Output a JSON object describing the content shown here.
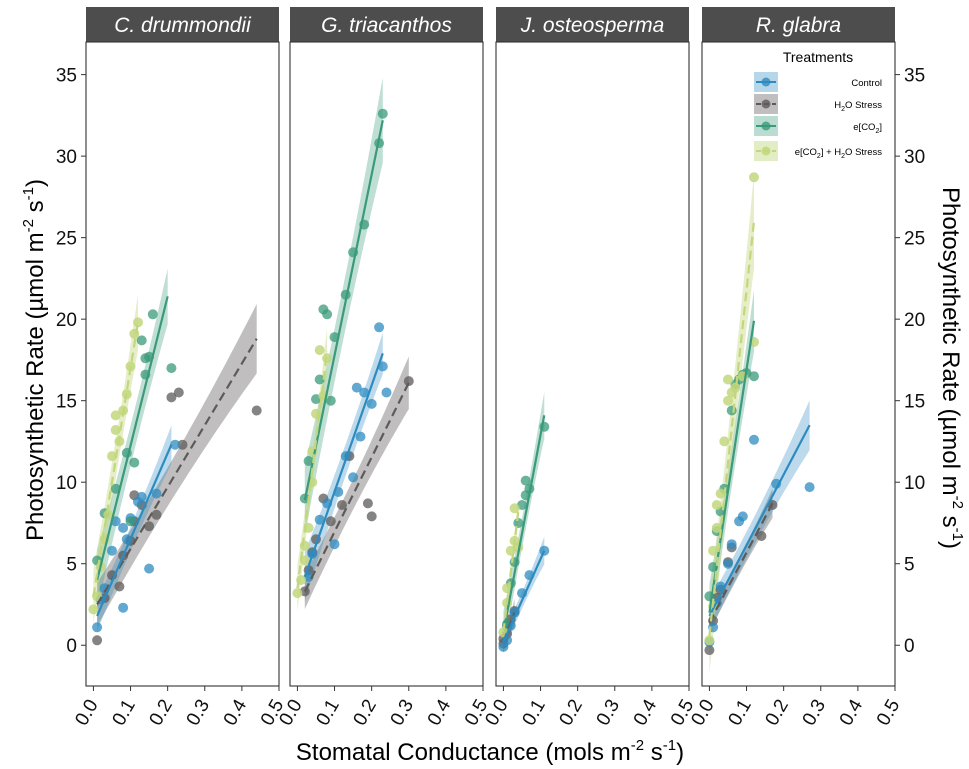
{
  "chart_data": {
    "type": "scatter",
    "xlabel": {
      "pre": "Stomatal Conductance (mols m",
      "sup1": "-2",
      "mid": " s",
      "sup2": "-1",
      "post": ")"
    },
    "ylabel": {
      "pre": "Photosynthetic Rate (µmol m",
      "sup1": "-2",
      "mid": " s",
      "sup2": "-1",
      "post": ")"
    },
    "xlim": [
      -0.02,
      0.5
    ],
    "ylim": [
      -2.5,
      37
    ],
    "x_ticks": [
      "0.0",
      "0.1",
      "0.2",
      "0.3",
      "0.4",
      "0.5"
    ],
    "y_ticks": [
      "0",
      "5",
      "10",
      "15",
      "20",
      "25",
      "30",
      "35"
    ],
    "x_tick_values": [
      0,
      0.1,
      0.2,
      0.3,
      0.4,
      0.5
    ],
    "y_tick_values": [
      0,
      5,
      10,
      15,
      20,
      25,
      30,
      35
    ],
    "grid": false,
    "legend": {
      "title": "Treatments",
      "placement": "top-right, inside last panel",
      "entries": [
        {
          "label": "Control",
          "dash": "solid"
        },
        {
          "label": "H",
          "sub": "2",
          "label2": "O Stress",
          "dash": "dashed"
        },
        {
          "label": "e[CO",
          "sub": "2",
          "label2": "]",
          "dash": "solid"
        },
        {
          "label": "e[CO",
          "sub": "2",
          "label2": "] + H",
          "sub2": "2",
          "label3": "O Stress",
          "dash": "dashed"
        }
      ]
    },
    "series_colors": {
      "control": "#2e8bc0",
      "h2o_stress": "#5e5a5a",
      "eco2": "#3a9a7a",
      "eco2_h2o": "#c2d77c",
      "h2o_band": "#8d8888"
    },
    "panels": [
      {
        "title": "C. drummondii",
        "series": [
          {
            "key": "control",
            "points": [
              [
                0.01,
                1.1
              ],
              [
                0.02,
                2.8
              ],
              [
                0.03,
                3.5
              ],
              [
                0.05,
                5.8
              ],
              [
                0.06,
                7.6
              ],
              [
                0.08,
                7.2
              ],
              [
                0.08,
                2.3
              ],
              [
                0.09,
                6.5
              ],
              [
                0.1,
                7.8
              ],
              [
                0.12,
                8.8
              ],
              [
                0.13,
                9.1
              ],
              [
                0.15,
                4.7
              ],
              [
                0.17,
                9.3
              ],
              [
                0.22,
                12.3
              ]
            ],
            "fit": [
              [
                0.01,
                1.8
              ],
              [
                0.21,
                12.3
              ]
            ]
          },
          {
            "key": "h2o_stress",
            "points": [
              [
                0.01,
                0.3
              ],
              [
                0.03,
                2.9
              ],
              [
                0.05,
                4.3
              ],
              [
                0.07,
                3.6
              ],
              [
                0.08,
                5.5
              ],
              [
                0.1,
                6.4
              ],
              [
                0.11,
                7.6
              ],
              [
                0.11,
                9.2
              ],
              [
                0.13,
                8.6
              ],
              [
                0.15,
                7.3
              ],
              [
                0.17,
                8.0
              ],
              [
                0.21,
                15.2
              ],
              [
                0.23,
                15.5
              ],
              [
                0.24,
                12.3
              ],
              [
                0.44,
                14.4
              ]
            ],
            "fit": [
              [
                0.01,
                2.5
              ],
              [
                0.44,
                18.8
              ]
            ]
          },
          {
            "key": "eco2",
            "points": [
              [
                0.01,
                5.2
              ],
              [
                0.03,
                8.1
              ],
              [
                0.06,
                9.6
              ],
              [
                0.09,
                11.8
              ],
              [
                0.1,
                7.6
              ],
              [
                0.11,
                11.2
              ],
              [
                0.13,
                18.7
              ],
              [
                0.14,
                16.6
              ],
              [
                0.14,
                17.6
              ],
              [
                0.15,
                17.7
              ],
              [
                0.16,
                20.3
              ],
              [
                0.21,
                17.0
              ]
            ],
            "fit": [
              [
                0.01,
                4.0
              ],
              [
                0.2,
                21.4
              ]
            ]
          },
          {
            "key": "eco2_h2o",
            "points": [
              [
                0.0,
                2.2
              ],
              [
                0.01,
                3.0
              ],
              [
                0.02,
                4.8
              ],
              [
                0.03,
                6.5
              ],
              [
                0.04,
                8.0
              ],
              [
                0.05,
                11.6
              ],
              [
                0.06,
                14.1
              ],
              [
                0.06,
                13.2
              ],
              [
                0.07,
                12.5
              ],
              [
                0.08,
                14.4
              ],
              [
                0.09,
                15.4
              ],
              [
                0.1,
                17.1
              ],
              [
                0.11,
                19.1
              ],
              [
                0.12,
                19.8
              ]
            ],
            "fit": [
              [
                0.0,
                3.0
              ],
              [
                0.12,
                19.8
              ]
            ]
          }
        ]
      },
      {
        "title": "G. triacanthos",
        "series": [
          {
            "key": "control",
            "points": [
              [
                0.03,
                4.2
              ],
              [
                0.04,
                5.6
              ],
              [
                0.06,
                7.7
              ],
              [
                0.08,
                8.7
              ],
              [
                0.1,
                6.2
              ],
              [
                0.11,
                9.4
              ],
              [
                0.13,
                11.6
              ],
              [
                0.15,
                10.3
              ],
              [
                0.16,
                15.8
              ],
              [
                0.17,
                12.8
              ],
              [
                0.18,
                15.5
              ],
              [
                0.2,
                14.8
              ],
              [
                0.22,
                19.5
              ],
              [
                0.23,
                17.1
              ],
              [
                0.24,
                15.5
              ]
            ],
            "fit": [
              [
                0.02,
                4.2
              ],
              [
                0.23,
                17.9
              ]
            ]
          },
          {
            "key": "h2o_stress",
            "points": [
              [
                0.02,
                3.3
              ],
              [
                0.03,
                4.6
              ],
              [
                0.04,
                5.7
              ],
              [
                0.05,
                6.5
              ],
              [
                0.07,
                9.0
              ],
              [
                0.09,
                7.6
              ],
              [
                0.12,
                8.6
              ],
              [
                0.14,
                11.6
              ],
              [
                0.19,
                8.7
              ],
              [
                0.2,
                7.9
              ],
              [
                0.3,
                16.2
              ]
            ],
            "fit": [
              [
                0.02,
                3.3
              ],
              [
                0.3,
                16.1
              ]
            ]
          },
          {
            "key": "eco2",
            "points": [
              [
                0.02,
                9.0
              ],
              [
                0.03,
                11.3
              ],
              [
                0.05,
                15.1
              ],
              [
                0.06,
                16.3
              ],
              [
                0.07,
                20.6
              ],
              [
                0.08,
                20.3
              ],
              [
                0.09,
                15.0
              ],
              [
                0.1,
                18.9
              ],
              [
                0.13,
                21.5
              ],
              [
                0.15,
                24.1
              ],
              [
                0.18,
                25.8
              ],
              [
                0.22,
                30.8
              ],
              [
                0.23,
                32.6
              ]
            ],
            "fit": [
              [
                0.02,
                8.9
              ],
              [
                0.23,
                32.2
              ]
            ]
          },
          {
            "key": "eco2_h2o",
            "points": [
              [
                0.0,
                3.2
              ],
              [
                0.01,
                4.0
              ],
              [
                0.02,
                5.2
              ],
              [
                0.02,
                6.1
              ],
              [
                0.03,
                7.2
              ],
              [
                0.04,
                10.0
              ],
              [
                0.04,
                11.9
              ],
              [
                0.05,
                14.2
              ],
              [
                0.06,
                18.1
              ],
              [
                0.07,
                15.3
              ],
              [
                0.08,
                17.6
              ]
            ],
            "fit": [
              [
                0.0,
                3.5
              ],
              [
                0.08,
                18.0
              ]
            ]
          }
        ]
      },
      {
        "title": "J. osteosperma",
        "series": [
          {
            "key": "control",
            "points": [
              [
                0.0,
                -0.1
              ],
              [
                0.01,
                0.3
              ],
              [
                0.02,
                1.2
              ],
              [
                0.03,
                2.0
              ],
              [
                0.05,
                3.2
              ],
              [
                0.07,
                4.3
              ],
              [
                0.11,
                5.8
              ]
            ],
            "fit": [
              [
                0.0,
                0.2
              ],
              [
                0.11,
                5.8
              ]
            ]
          },
          {
            "key": "h2o_stress",
            "points": [
              [
                0.0,
                0.1
              ],
              [
                0.0,
                0.4
              ],
              [
                0.01,
                0.7
              ],
              [
                0.01,
                1.2
              ],
              [
                0.02,
                1.6
              ],
              [
                0.03,
                2.1
              ]
            ],
            "fit": [
              [
                0.0,
                0.2
              ],
              [
                0.03,
                2.0
              ]
            ]
          },
          {
            "key": "eco2",
            "points": [
              [
                0.01,
                1.3
              ],
              [
                0.02,
                3.8
              ],
              [
                0.03,
                5.1
              ],
              [
                0.04,
                7.5
              ],
              [
                0.05,
                8.6
              ],
              [
                0.06,
                9.2
              ],
              [
                0.06,
                10.1
              ],
              [
                0.07,
                9.6
              ],
              [
                0.11,
                13.4
              ]
            ],
            "fit": [
              [
                0.0,
                0.8
              ],
              [
                0.11,
                14.1
              ]
            ]
          },
          {
            "key": "eco2_h2o",
            "points": [
              [
                0.0,
                0.8
              ],
              [
                0.01,
                2.6
              ],
              [
                0.01,
                3.5
              ],
              [
                0.02,
                5.8
              ],
              [
                0.03,
                6.4
              ],
              [
                0.03,
                8.4
              ],
              [
                0.04,
                6.0
              ]
            ],
            "fit": [
              [
                0.0,
                0.8
              ],
              [
                0.04,
                8.2
              ]
            ]
          }
        ]
      },
      {
        "title": "R. glabra",
        "series": [
          {
            "key": "control",
            "points": [
              [
                0.0,
                0.2
              ],
              [
                0.01,
                1.1
              ],
              [
                0.02,
                2.6
              ],
              [
                0.03,
                3.6
              ],
              [
                0.05,
                5.0
              ],
              [
                0.06,
                6.2
              ],
              [
                0.08,
                7.6
              ],
              [
                0.09,
                7.9
              ],
              [
                0.12,
                12.6
              ],
              [
                0.18,
                9.9
              ],
              [
                0.27,
                9.7
              ]
            ],
            "fit": [
              [
                0.0,
                1.8
              ],
              [
                0.27,
                13.5
              ]
            ]
          },
          {
            "key": "h2o_stress",
            "points": [
              [
                0.0,
                -0.3
              ],
              [
                0.01,
                1.5
              ],
              [
                0.02,
                2.9
              ],
              [
                0.03,
                3.4
              ],
              [
                0.05,
                5.1
              ],
              [
                0.06,
                6.0
              ],
              [
                0.14,
                6.7
              ],
              [
                0.17,
                8.6
              ]
            ],
            "fit": [
              [
                0.0,
                1.4
              ],
              [
                0.17,
                8.7
              ]
            ]
          },
          {
            "key": "eco2",
            "points": [
              [
                0.0,
                3.0
              ],
              [
                0.01,
                4.8
              ],
              [
                0.02,
                7.0
              ],
              [
                0.03,
                8.2
              ],
              [
                0.04,
                9.6
              ],
              [
                0.06,
                14.4
              ],
              [
                0.07,
                16.0
              ],
              [
                0.08,
                16.3
              ],
              [
                0.09,
                16.6
              ],
              [
                0.1,
                16.7
              ],
              [
                0.12,
                16.5
              ]
            ],
            "fit": [
              [
                0.0,
                2.0
              ],
              [
                0.12,
                19.9
              ]
            ]
          },
          {
            "key": "eco2_h2o",
            "points": [
              [
                0.0,
                0.3
              ],
              [
                0.01,
                2.4
              ],
              [
                0.01,
                5.8
              ],
              [
                0.02,
                7.2
              ],
              [
                0.02,
                8.6
              ],
              [
                0.03,
                9.3
              ],
              [
                0.04,
                12.5
              ],
              [
                0.05,
                15.0
              ],
              [
                0.05,
                16.3
              ],
              [
                0.06,
                15.5
              ],
              [
                0.07,
                15.8
              ],
              [
                0.09,
                16.5
              ],
              [
                0.12,
                18.6
              ],
              [
                0.12,
                28.7
              ]
            ],
            "fit": [
              [
                0.0,
                0.6
              ],
              [
                0.12,
                26.0
              ]
            ]
          }
        ]
      }
    ]
  }
}
